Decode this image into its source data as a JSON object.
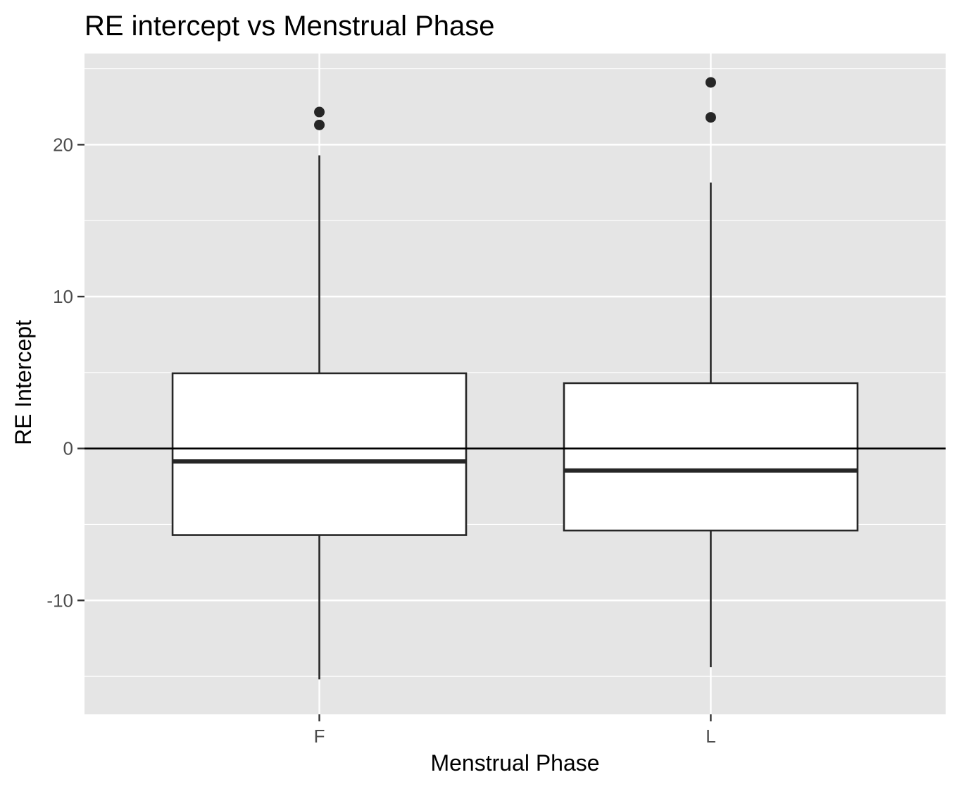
{
  "chart_data": {
    "type": "boxplot",
    "title": "RE intercept vs Menstrual Phase",
    "xlabel": "Menstrual Phase",
    "ylabel": "RE Intercept",
    "categories": [
      "F",
      "L"
    ],
    "ylim": [
      -17.5,
      26
    ],
    "y_ticks": [
      -10,
      0,
      10,
      20
    ],
    "y_tick_labels": [
      "-10",
      "0",
      "10",
      "20"
    ],
    "grid": true,
    "reference_line_y": 0,
    "boxes": [
      {
        "category": "F",
        "whisker_low": -15.2,
        "q1": -5.7,
        "median": -0.85,
        "q3": 4.95,
        "whisker_high": 19.3,
        "outliers": [
          21.3,
          22.15
        ]
      },
      {
        "category": "L",
        "whisker_low": -14.4,
        "q1": -5.4,
        "median": -1.45,
        "q3": 4.3,
        "whisker_high": 17.5,
        "outliers": [
          21.8,
          24.1
        ]
      }
    ],
    "colors": {
      "panel_background": "#e5e5e5",
      "grid": "#ffffff",
      "box_fill": "#ffffff",
      "box_stroke": "#262626",
      "outlier": "#262626",
      "reference_line": "#000000",
      "tick_text": "#4d4d4d",
      "tick_mark": "#333333"
    }
  }
}
